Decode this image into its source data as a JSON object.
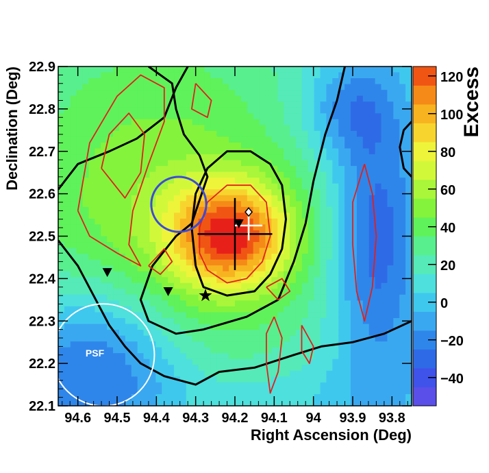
{
  "chart_data": {
    "type": "heatmap",
    "title": "",
    "xlabel": "Right Ascension (Deg)",
    "ylabel": "Declination (Deg)",
    "zlabel": "Excess",
    "xlim": [
      94.65,
      93.75
    ],
    "ylim": [
      22.1,
      22.9
    ],
    "zlim": [
      -55,
      125
    ],
    "x_axis_reversed": true,
    "x_ticks": [
      {
        "value": 94.6,
        "label": "94.6"
      },
      {
        "value": 94.5,
        "label": "94.5"
      },
      {
        "value": 94.4,
        "label": "94.4"
      },
      {
        "value": 94.3,
        "label": "94.3"
      },
      {
        "value": 94.2,
        "label": "94.2"
      },
      {
        "value": 94.1,
        "label": "94.1"
      },
      {
        "value": 94.0,
        "label": "94"
      },
      {
        "value": 93.9,
        "label": "93.9"
      },
      {
        "value": 93.8,
        "label": "93.8"
      }
    ],
    "y_ticks": [
      {
        "value": 22.1,
        "label": "22.1"
      },
      {
        "value": 22.2,
        "label": "22.2"
      },
      {
        "value": 22.3,
        "label": "22.3"
      },
      {
        "value": 22.4,
        "label": "22.4"
      },
      {
        "value": 22.5,
        "label": "22.5"
      },
      {
        "value": 22.6,
        "label": "22.6"
      },
      {
        "value": 22.7,
        "label": "22.7"
      },
      {
        "value": 22.8,
        "label": "22.8"
      },
      {
        "value": 22.9,
        "label": "22.9"
      }
    ],
    "z_ticks": [
      {
        "value": -40,
        "label": "−40"
      },
      {
        "value": -20,
        "label": "−20"
      },
      {
        "value": 0,
        "label": "0"
      },
      {
        "value": 20,
        "label": "20"
      },
      {
        "value": 40,
        "label": "40"
      },
      {
        "value": 60,
        "label": "60"
      },
      {
        "value": 80,
        "label": "80"
      },
      {
        "value": 100,
        "label": "100"
      },
      {
        "value": 120,
        "label": "120"
      }
    ],
    "colorbar": {
      "levels": [
        -55,
        -45,
        -35,
        -25,
        -15,
        -5,
        5,
        15,
        25,
        35,
        45,
        55,
        65,
        75,
        85,
        95,
        105,
        115,
        125
      ],
      "colors": [
        "#5a4fe8",
        "#3f52ea",
        "#2f6ae6",
        "#2f86ea",
        "#3aa8f0",
        "#3fc8ee",
        "#4ee0dc",
        "#55eab8",
        "#58ef8e",
        "#5ff25a",
        "#84f33c",
        "#a9f63a",
        "#d2f83a",
        "#eef43a",
        "#f7d52e",
        "#f8b320",
        "#f58a18",
        "#f05514",
        "#e8201a"
      ]
    },
    "excess_components": [
      {
        "ra": 94.21,
        "dec": 22.5,
        "sra": 0.11,
        "sdec": 0.09,
        "amp": 90
      },
      {
        "ra": 94.4,
        "dec": 22.55,
        "sra": 0.33,
        "sdec": 0.38,
        "amp": 48
      },
      {
        "ra": 93.84,
        "dec": 22.5,
        "sra": 0.08,
        "sdec": 0.25,
        "amp": -45
      },
      {
        "ra": 93.92,
        "dec": 22.8,
        "sra": 0.08,
        "sdec": 0.08,
        "amp": -28
      },
      {
        "ra": 94.55,
        "dec": 22.2,
        "sra": 0.16,
        "sdec": 0.14,
        "amp": -55
      },
      {
        "ra": 94.1,
        "dec": 22.12,
        "sra": 0.3,
        "sdec": 0.06,
        "amp": -10
      }
    ],
    "excess_baseline": 5,
    "annotations": {
      "psf_label": "PSF",
      "psf_circle": {
        "ra": 94.535,
        "dec": 22.22,
        "radius_deg": 0.13,
        "color": "#ffffff"
      },
      "blue_circle": {
        "ra": 94.343,
        "dec": 22.575,
        "radius_deg": 0.07,
        "color": "#3d4bd6"
      },
      "crosses": [
        {
          "ra": 94.2,
          "dec": 22.505,
          "half_width": 0.095,
          "half_height": 0.085,
          "color": "#000000"
        },
        {
          "ra": 94.165,
          "dec": 22.525,
          "half_width": 0.035,
          "half_height": 0.035,
          "color": "#ffffff"
        }
      ],
      "triangles": [
        {
          "ra": 94.525,
          "dec": 22.415
        },
        {
          "ra": 94.37,
          "dec": 22.37
        },
        {
          "ra": 94.19,
          "dec": 22.53
        }
      ],
      "star": {
        "ra": 94.275,
        "dec": 22.36
      },
      "diamond": {
        "ra": 94.165,
        "dec": 22.557
      }
    },
    "black_contours": [
      [
        [
          94.65,
          22.61
        ],
        [
          94.6,
          22.67
        ],
        [
          94.52,
          22.7
        ],
        [
          94.45,
          22.73
        ],
        [
          94.38,
          22.78
        ],
        [
          94.35,
          22.85
        ],
        [
          94.32,
          22.9
        ]
      ],
      [
        [
          94.42,
          22.9
        ],
        [
          94.36,
          22.86
        ],
        [
          94.35,
          22.8
        ],
        [
          94.33,
          22.74
        ],
        [
          94.29,
          22.69
        ],
        [
          94.27,
          22.64
        ],
        [
          94.31,
          22.53
        ],
        [
          94.35,
          22.5
        ],
        [
          94.41,
          22.43
        ],
        [
          94.44,
          22.35
        ],
        [
          94.42,
          22.3
        ],
        [
          94.35,
          22.27
        ],
        [
          94.28,
          22.28
        ],
        [
          94.17,
          22.31
        ],
        [
          94.09,
          22.35
        ],
        [
          94.05,
          22.44
        ],
        [
          94.02,
          22.53
        ],
        [
          94.0,
          22.63
        ],
        [
          93.97,
          22.74
        ],
        [
          93.94,
          22.82
        ],
        [
          93.92,
          22.9
        ]
      ],
      [
        [
          94.3,
          22.43
        ],
        [
          94.28,
          22.38
        ],
        [
          94.22,
          22.36
        ],
        [
          94.15,
          22.37
        ],
        [
          94.11,
          22.41
        ],
        [
          94.08,
          22.47
        ],
        [
          94.07,
          22.54
        ],
        [
          94.08,
          22.62
        ],
        [
          94.11,
          22.67
        ],
        [
          94.16,
          22.7
        ],
        [
          94.22,
          22.7
        ],
        [
          94.27,
          22.66
        ],
        [
          94.3,
          22.6
        ],
        [
          94.31,
          22.52
        ],
        [
          94.3,
          22.43
        ]
      ],
      [
        [
          94.65,
          22.49
        ],
        [
          94.6,
          22.43
        ],
        [
          94.56,
          22.36
        ],
        [
          94.52,
          22.29
        ],
        [
          94.48,
          22.24
        ],
        [
          94.44,
          22.2
        ],
        [
          94.38,
          22.17
        ],
        [
          94.3,
          22.15
        ],
        [
          94.24,
          22.18
        ],
        [
          94.15,
          22.19
        ],
        [
          94.05,
          22.22
        ],
        [
          93.98,
          22.24
        ],
        [
          93.9,
          22.25
        ],
        [
          93.82,
          22.27
        ],
        [
          93.75,
          22.3
        ]
      ],
      [
        [
          93.75,
          22.64
        ],
        [
          93.77,
          22.66
        ],
        [
          93.78,
          22.71
        ],
        [
          93.77,
          22.75
        ],
        [
          93.75,
          22.77
        ]
      ]
    ],
    "red_contours": [
      [
        [
          94.6,
          22.56
        ],
        [
          94.57,
          22.72
        ],
        [
          94.5,
          22.83
        ],
        [
          94.44,
          22.88
        ],
        [
          94.38,
          22.85
        ],
        [
          94.38,
          22.77
        ],
        [
          94.42,
          22.67
        ],
        [
          94.46,
          22.56
        ],
        [
          94.47,
          22.48
        ],
        [
          94.44,
          22.43
        ],
        [
          94.5,
          22.46
        ],
        [
          94.57,
          22.5
        ],
        [
          94.6,
          22.56
        ]
      ],
      [
        [
          94.54,
          22.66
        ],
        [
          94.52,
          22.74
        ],
        [
          94.47,
          22.79
        ],
        [
          94.43,
          22.74
        ],
        [
          94.44,
          22.65
        ],
        [
          94.48,
          22.59
        ],
        [
          94.54,
          22.66
        ]
      ],
      [
        [
          94.29,
          22.46
        ],
        [
          94.27,
          22.42
        ],
        [
          94.22,
          22.39
        ],
        [
          94.17,
          22.4
        ],
        [
          94.13,
          22.44
        ],
        [
          94.11,
          22.5
        ],
        [
          94.12,
          22.58
        ],
        [
          94.16,
          22.62
        ],
        [
          94.22,
          22.62
        ],
        [
          94.27,
          22.58
        ],
        [
          94.29,
          22.52
        ],
        [
          94.29,
          22.46
        ]
      ],
      [
        [
          93.87,
          22.67
        ],
        [
          93.85,
          22.6
        ],
        [
          93.84,
          22.5
        ],
        [
          93.85,
          22.38
        ],
        [
          93.87,
          22.3
        ],
        [
          93.89,
          22.37
        ],
        [
          93.9,
          22.48
        ],
        [
          93.9,
          22.58
        ],
        [
          93.87,
          22.67
        ]
      ],
      [
        [
          94.1,
          22.31
        ],
        [
          94.08,
          22.26
        ],
        [
          94.09,
          22.18
        ],
        [
          94.11,
          22.13
        ],
        [
          94.12,
          22.2
        ],
        [
          94.12,
          22.27
        ],
        [
          94.1,
          22.31
        ]
      ],
      [
        [
          94.03,
          22.29
        ],
        [
          94.0,
          22.24
        ],
        [
          94.01,
          22.2
        ],
        [
          94.03,
          22.23
        ],
        [
          94.03,
          22.29
        ]
      ],
      [
        [
          94.12,
          22.38
        ],
        [
          94.09,
          22.35
        ],
        [
          94.06,
          22.37
        ],
        [
          94.08,
          22.4
        ],
        [
          94.12,
          22.38
        ]
      ],
      [
        [
          94.3,
          22.86
        ],
        [
          94.26,
          22.82
        ],
        [
          94.27,
          22.78
        ],
        [
          94.31,
          22.8
        ],
        [
          94.3,
          22.86
        ]
      ],
      [
        [
          94.42,
          22.43
        ],
        [
          94.39,
          22.41
        ],
        [
          94.36,
          22.44
        ],
        [
          94.38,
          22.47
        ],
        [
          94.42,
          22.43
        ]
      ]
    ]
  }
}
